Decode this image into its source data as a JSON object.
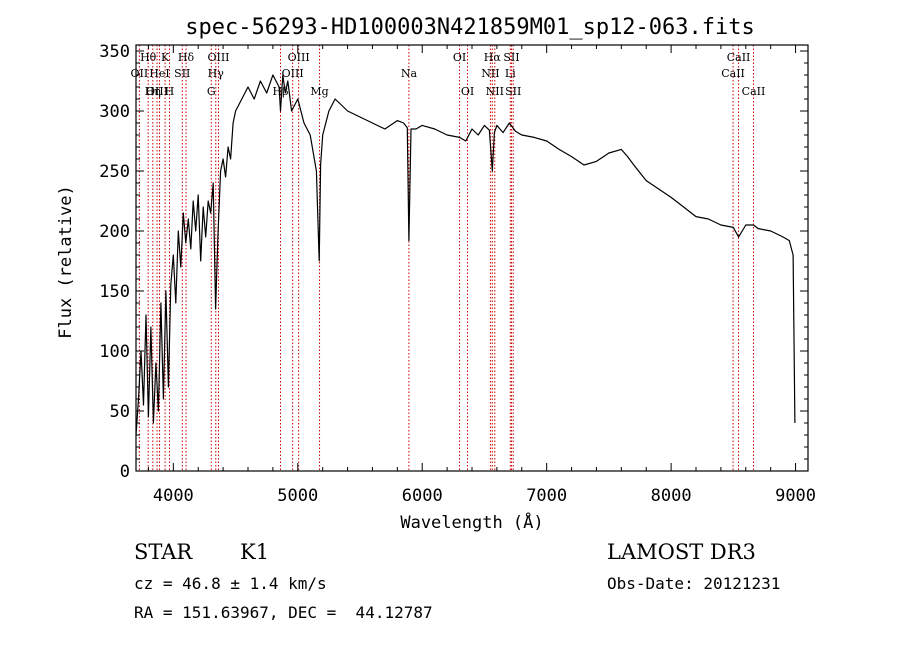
{
  "chart_data": {
    "type": "line",
    "title": "spec-56293-HD100003N421859M01_sp12-063.fits",
    "xlabel": "Wavelength (Å)",
    "ylabel": "Flux (relative)",
    "xlim": [
      3700,
      9100
    ],
    "ylim": [
      0,
      355
    ],
    "xticks": [
      4000,
      5000,
      6000,
      7000,
      8000,
      9000
    ],
    "yticks": [
      0,
      50,
      100,
      150,
      200,
      250,
      300,
      350
    ],
    "line_color": "#000000",
    "marker_color": "#cc0000",
    "spectrum": {
      "wavelength": [
        3700,
        3720,
        3740,
        3760,
        3780,
        3800,
        3820,
        3840,
        3860,
        3880,
        3900,
        3920,
        3940,
        3960,
        3980,
        4000,
        4020,
        4040,
        4060,
        4080,
        4100,
        4120,
        4140,
        4160,
        4180,
        4200,
        4220,
        4240,
        4260,
        4280,
        4300,
        4320,
        4340,
        4360,
        4380,
        4400,
        4420,
        4440,
        4460,
        4480,
        4500,
        4550,
        4600,
        4650,
        4700,
        4750,
        4800,
        4850,
        4861,
        4880,
        4900,
        4920,
        4950,
        5000,
        5050,
        5100,
        5150,
        5172,
        5183,
        5200,
        5250,
        5300,
        5400,
        5500,
        5600,
        5700,
        5800,
        5850,
        5880,
        5893,
        5910,
        5950,
        6000,
        6100,
        6200,
        6300,
        6350,
        6400,
        6450,
        6500,
        6540,
        6563,
        6580,
        6600,
        6650,
        6700,
        6750,
        6800,
        6900,
        7000,
        7100,
        7200,
        7300,
        7400,
        7500,
        7600,
        7650,
        7700,
        7800,
        7900,
        8000,
        8100,
        8200,
        8300,
        8400,
        8500,
        8542,
        8600,
        8662,
        8700,
        8800,
        8900,
        8950,
        8980,
        8995
      ],
      "flux": [
        30,
        60,
        100,
        55,
        130,
        45,
        120,
        40,
        90,
        50,
        140,
        60,
        150,
        70,
        155,
        180,
        140,
        200,
        170,
        215,
        190,
        210,
        185,
        225,
        200,
        230,
        175,
        220,
        195,
        225,
        215,
        240,
        135,
        200,
        250,
        260,
        245,
        270,
        260,
        290,
        300,
        310,
        320,
        310,
        325,
        315,
        330,
        320,
        300,
        330,
        315,
        325,
        300,
        310,
        290,
        280,
        250,
        175,
        255,
        280,
        300,
        310,
        300,
        295,
        290,
        285,
        292,
        290,
        286,
        192,
        285,
        285,
        288,
        285,
        280,
        278,
        275,
        285,
        280,
        288,
        284,
        250,
        282,
        288,
        282,
        290,
        283,
        280,
        278,
        275,
        268,
        262,
        255,
        258,
        265,
        268,
        262,
        255,
        242,
        235,
        228,
        220,
        212,
        210,
        205,
        203,
        195,
        205,
        205,
        202,
        200,
        195,
        192,
        180,
        40
      ]
    },
    "line_markers": [
      {
        "label": "Hθ",
        "x": 3798,
        "row": 0
      },
      {
        "label": "OII",
        "x": 3727,
        "row": 1
      },
      {
        "label": "OIII",
        "x": 3869,
        "row": 2
      },
      {
        "label": "K",
        "x": 3934,
        "row": 0
      },
      {
        "label": "HeI",
        "x": 3889,
        "row": 1
      },
      {
        "label": "Hη",
        "x": 3835,
        "row": 2
      },
      {
        "label": "Hδ",
        "x": 4102,
        "row": 0
      },
      {
        "label": "SII",
        "x": 4072,
        "row": 1
      },
      {
        "label": "H",
        "x": 3969,
        "row": 2
      },
      {
        "label": "OIII",
        "x": 4363,
        "row": 0
      },
      {
        "label": "Hγ",
        "x": 4341,
        "row": 1
      },
      {
        "label": "G",
        "x": 4305,
        "row": 2
      },
      {
        "label": "OIII",
        "x": 5007,
        "row": 0
      },
      {
        "label": "OIII",
        "x": 4959,
        "row": 1
      },
      {
        "label": "Hβ",
        "x": 4861,
        "row": 2
      },
      {
        "label": "Mg",
        "x": 5175,
        "row": 2
      },
      {
        "label": "Na",
        "x": 5893,
        "row": 1
      },
      {
        "label": "OI",
        "x": 6300,
        "row": 0
      },
      {
        "label": "OI",
        "x": 6364,
        "row": 2
      },
      {
        "label": "Hα",
        "x": 6563,
        "row": 0
      },
      {
        "label": "NII",
        "x": 6548,
        "row": 1
      },
      {
        "label": "NII",
        "x": 6583,
        "row": 2
      },
      {
        "label": "SII",
        "x": 6717,
        "row": 0
      },
      {
        "label": "Li",
        "x": 6708,
        "row": 1
      },
      {
        "label": "SII",
        "x": 6731,
        "row": 2
      },
      {
        "label": "CaII",
        "x": 8542,
        "row": 0
      },
      {
        "label": "CaII",
        "x": 8498,
        "row": 1
      },
      {
        "label": "CaII",
        "x": 8662,
        "row": 2
      }
    ]
  },
  "info": {
    "object_class": "STAR",
    "subclass": "K1",
    "survey": "LAMOST DR3",
    "redshift": "cz = 46.8 ± 1.4 km/s",
    "obs_date": "Obs-Date: 20121231",
    "coords": "RA = 151.63967, DEC =  44.12787"
  }
}
